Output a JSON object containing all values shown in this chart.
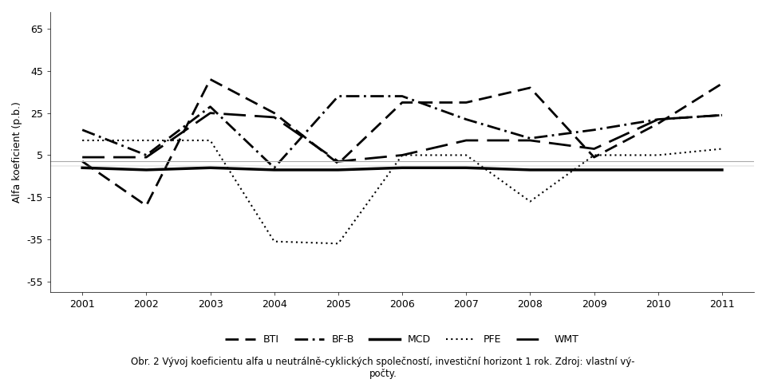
{
  "years": [
    2001,
    2002,
    2003,
    2004,
    2005,
    2006,
    2007,
    2008,
    2009,
    2010,
    2011
  ],
  "BTI": [
    2,
    -19,
    41,
    25,
    1,
    30,
    30,
    37,
    4,
    20,
    39
  ],
  "BF_B": [
    17,
    5,
    28,
    -1,
    33,
    33,
    22,
    13,
    17,
    22,
    24
  ],
  "MCD": [
    -1,
    -2,
    -1,
    -2,
    -2,
    -1,
    -1,
    -2,
    -2,
    -2,
    -2
  ],
  "PFE": [
    12,
    12,
    12,
    -36,
    -37,
    5,
    5,
    -17,
    5,
    5,
    8
  ],
  "WMT": [
    4,
    4,
    25,
    23,
    2,
    5,
    12,
    12,
    8,
    22,
    24
  ],
  "title": "Obr. 2 Vývoj koeficientu alfa u neutrálně-cyklických společností, investiční horizont 1 rok. Zdroj: vlastní vý-\npočty.",
  "ylabel": "Alfa koeficient (p.b.)",
  "yticks": [
    65,
    45,
    25,
    5,
    -15,
    -35,
    -55
  ],
  "ylim": [
    -60,
    73
  ],
  "background_color": "#ffffff",
  "grid_color": "#aaaaaa",
  "line_color": "#000000"
}
